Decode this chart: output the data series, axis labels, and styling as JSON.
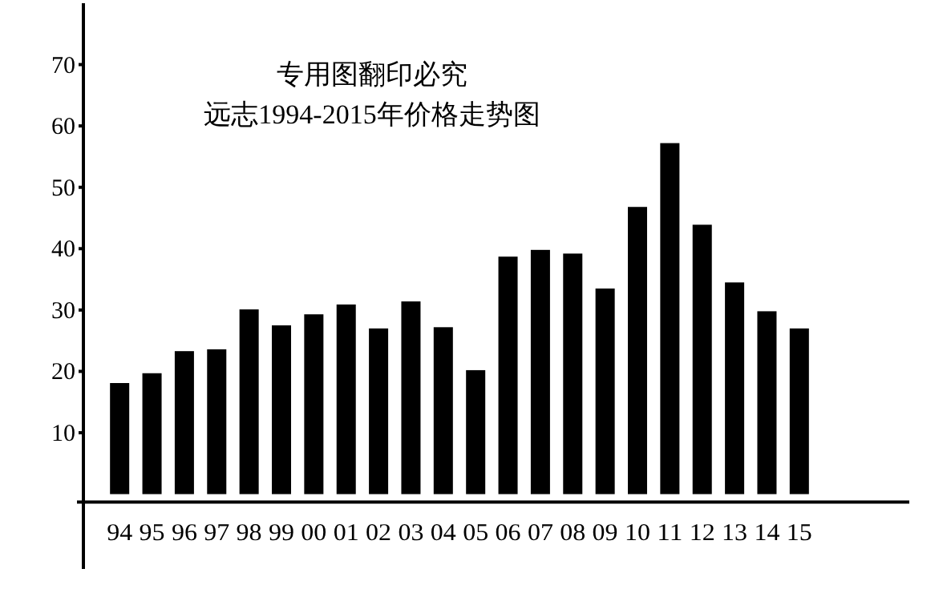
{
  "chart_data": {
    "type": "bar",
    "title": "专用图翻印必究",
    "subtitle": "远志1994-2015年价格走势图",
    "categories": [
      "94",
      "95",
      "96",
      "97",
      "98",
      "99",
      "00",
      "01",
      "02",
      "03",
      "04",
      "05",
      "06",
      "07",
      "08",
      "09",
      "10",
      "11",
      "12",
      "13",
      "14",
      "15"
    ],
    "values": [
      18.1,
      19.7,
      23.3,
      23.6,
      30.1,
      27.5,
      29.3,
      30.9,
      27.0,
      31.4,
      27.2,
      20.2,
      38.7,
      39.8,
      39.2,
      33.5,
      46.8,
      57.2,
      43.9,
      34.5,
      29.8,
      27.0
    ],
    "color": "#000000",
    "ylim": [
      -1.3,
      80
    ],
    "yticks": [
      10,
      20,
      30,
      40,
      50,
      60,
      70
    ],
    "grid": false
  }
}
